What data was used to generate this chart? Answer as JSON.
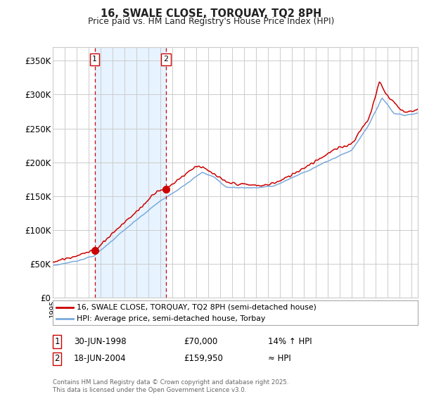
{
  "title": "16, SWALE CLOSE, TORQUAY, TQ2 8PH",
  "subtitle": "Price paid vs. HM Land Registry's House Price Index (HPI)",
  "ylabel_ticks": [
    "£0",
    "£50K",
    "£100K",
    "£150K",
    "£200K",
    "£250K",
    "£300K",
    "£350K"
  ],
  "ylim": [
    0,
    370000
  ],
  "xlim_start": 1995.0,
  "xlim_end": 2025.5,
  "sale1": {
    "date": 1998.5,
    "price": 70000,
    "label": "1"
  },
  "sale2": {
    "date": 2004.47,
    "price": 159950,
    "label": "2"
  },
  "legend_line1": "16, SWALE CLOSE, TORQUAY, TQ2 8PH (semi-detached house)",
  "legend_line2": "HPI: Average price, semi-detached house, Torbay",
  "annotation1": [
    "1",
    "30-JUN-1998",
    "£70,000",
    "14% ↑ HPI"
  ],
  "annotation2": [
    "2",
    "18-JUN-2004",
    "£159,950",
    "≈ HPI"
  ],
  "footer": "Contains HM Land Registry data © Crown copyright and database right 2025.\nThis data is licensed under the Open Government Licence v3.0.",
  "line_color_red": "#cc0000",
  "line_color_blue": "#7aaadd",
  "background_color": "#ffffff",
  "grid_color": "#cccccc",
  "shade_color": "#ddeeff"
}
